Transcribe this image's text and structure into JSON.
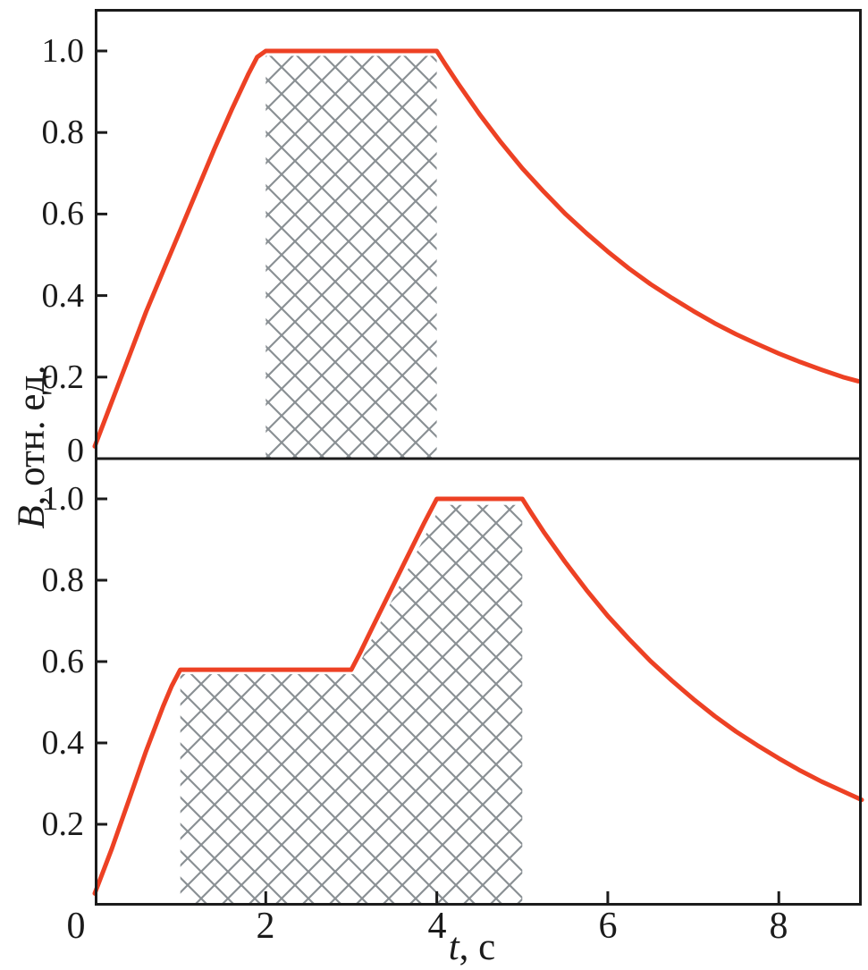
{
  "style": {
    "curve_color": "#ED4124",
    "hatch_color": "#8A9094",
    "axis_color": "#1B1B1B",
    "background_color": "#FFFFFF",
    "text_color": "#1B1B1B"
  },
  "axes": {
    "ylabel": {
      "variable": "B",
      "rest": ", отн. ед.",
      "full": "B, отн. ед."
    },
    "xlabel": {
      "variable": "t",
      "rest": ", с",
      "full": "t, с"
    },
    "x_ticks": {
      "values": [
        0,
        2,
        4,
        6,
        8
      ],
      "labels": [
        "0",
        "2",
        "4",
        "6",
        "8"
      ]
    },
    "top_panel_y_ticks": {
      "values": [
        1.0,
        0.8,
        0.6,
        0.4,
        0.2,
        0
      ],
      "labels": [
        "1.0",
        "0.8",
        "0.6",
        "0.4",
        "0.2",
        "0"
      ]
    },
    "bottom_panel_y_ticks": {
      "values": [
        1.0,
        0.8,
        0.6,
        0.4,
        0.2
      ],
      "labels": [
        "1.0",
        "0.8",
        "0.6",
        "0.4",
        "0.2"
      ]
    }
  },
  "chart_data": [
    {
      "panel": "top",
      "type": "line",
      "title": "",
      "xlabel": "t, с",
      "ylabel": "B, отн. ед.",
      "xlim": [
        0,
        8.97
      ],
      "ylim": [
        0,
        1.1
      ],
      "x_ticks": [
        0,
        2,
        4,
        6,
        8
      ],
      "y_ticks": [
        0,
        0.2,
        0.4,
        0.6,
        0.8,
        1.0
      ],
      "grid": false,
      "series": [
        {
          "name": "B(t): ramp 0-2 s to 1.0, plateau 2-4 s, exponential decay (tau ~ 3 s)",
          "color": "#ED4124",
          "points": [
            [
              0,
              0.03
            ],
            [
              0.2,
              0.14
            ],
            [
              0.4,
              0.25
            ],
            [
              0.6,
              0.36
            ],
            [
              0.8,
              0.46
            ],
            [
              1.0,
              0.56
            ],
            [
              1.2,
              0.66
            ],
            [
              1.4,
              0.76
            ],
            [
              1.6,
              0.855
            ],
            [
              1.8,
              0.945
            ],
            [
              1.9,
              0.985
            ],
            [
              2.0,
              1.0
            ],
            [
              4.0,
              1.0
            ],
            [
              4.1,
              0.967
            ],
            [
              4.25,
              0.92
            ],
            [
              4.5,
              0.845
            ],
            [
              4.75,
              0.776
            ],
            [
              5.0,
              0.712
            ],
            [
              5.25,
              0.655
            ],
            [
              5.5,
              0.601
            ],
            [
              5.75,
              0.553
            ],
            [
              6.0,
              0.508
            ],
            [
              6.25,
              0.466
            ],
            [
              6.5,
              0.428
            ],
            [
              6.75,
              0.394
            ],
            [
              7.0,
              0.362
            ],
            [
              7.25,
              0.332
            ],
            [
              7.5,
              0.305
            ],
            [
              7.75,
              0.281
            ],
            [
              8.0,
              0.258
            ],
            [
              8.25,
              0.237
            ],
            [
              8.5,
              0.218
            ],
            [
              8.75,
              0.2
            ],
            [
              8.93,
              0.19
            ]
          ]
        }
      ],
      "annotations": [
        {
          "type": "hatched_region",
          "description": "gray cross-hatched rectangle under the plateau, t = 2..4 s, B = 0..~0.99",
          "polygon": [
            [
              2,
              0
            ],
            [
              2,
              0.988
            ],
            [
              4,
              0.988
            ],
            [
              4,
              0
            ]
          ]
        }
      ]
    },
    {
      "panel": "bottom",
      "type": "line",
      "title": "",
      "xlabel": "t, с",
      "ylabel": "B, отн. ед.",
      "xlim": [
        0,
        8.97
      ],
      "ylim": [
        0,
        1.1
      ],
      "x_ticks": [
        0,
        2,
        4,
        6,
        8
      ],
      "y_ticks": [
        0,
        0.2,
        0.4,
        0.6,
        0.8,
        1.0
      ],
      "grid": false,
      "series": [
        {
          "name": "B(t): ramp 0-1 s to 0.58, plateau 1-3 s, ramp 3-4 s to 1.0, plateau 4-5 s, exponential decay (tau ~ 3 s)",
          "color": "#ED4124",
          "points": [
            [
              0,
              0.03
            ],
            [
              0.2,
              0.14
            ],
            [
              0.4,
              0.26
            ],
            [
              0.6,
              0.38
            ],
            [
              0.8,
              0.49
            ],
            [
              0.9,
              0.54
            ],
            [
              1.0,
              0.58
            ],
            [
              3.0,
              0.58
            ],
            [
              3.1,
              0.62
            ],
            [
              3.25,
              0.685
            ],
            [
              3.45,
              0.77
            ],
            [
              3.65,
              0.855
            ],
            [
              3.85,
              0.94
            ],
            [
              3.95,
              0.98
            ],
            [
              4.0,
              1.0
            ],
            [
              5.0,
              1.0
            ],
            [
              5.1,
              0.967
            ],
            [
              5.25,
              0.919
            ],
            [
              5.5,
              0.845
            ],
            [
              5.75,
              0.776
            ],
            [
              6.0,
              0.712
            ],
            [
              6.25,
              0.655
            ],
            [
              6.5,
              0.601
            ],
            [
              6.75,
              0.553
            ],
            [
              7.0,
              0.508
            ],
            [
              7.25,
              0.466
            ],
            [
              7.5,
              0.428
            ],
            [
              7.75,
              0.394
            ],
            [
              8.0,
              0.362
            ],
            [
              8.25,
              0.332
            ],
            [
              8.5,
              0.305
            ],
            [
              8.75,
              0.281
            ],
            [
              8.97,
              0.26
            ]
          ]
        }
      ],
      "annotations": [
        {
          "type": "hatched_region",
          "description": "gray cross-hatched area under the curve, t = 1..5 s",
          "polygon": [
            [
              1,
              0
            ],
            [
              1,
              0.569
            ],
            [
              3.03,
              0.569
            ],
            [
              4.05,
              0.985
            ],
            [
              5,
              0.985
            ],
            [
              5,
              0
            ]
          ]
        }
      ]
    }
  ]
}
